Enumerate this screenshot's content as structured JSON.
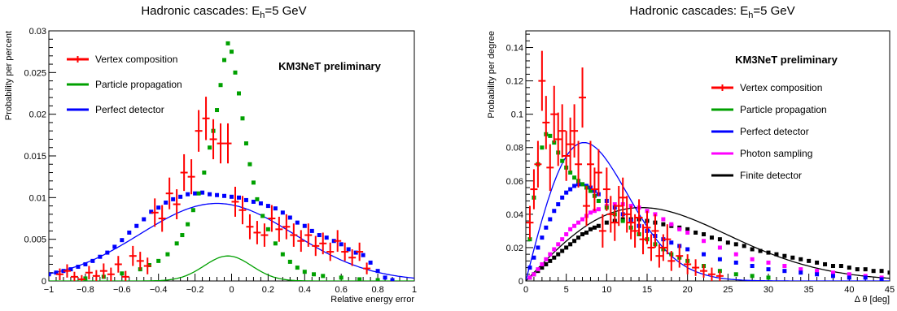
{
  "chart_data": [
    {
      "type": "scatter",
      "title_main": "Hadronic cascades: E",
      "title_sub": "h",
      "title_tail": "=5 GeV",
      "watermark": "KM3NeT preliminary",
      "xlabel": "Relative energy error",
      "ylabel": "Probability per percent",
      "xlim": [
        -1,
        1
      ],
      "ylim": [
        0,
        0.03
      ],
      "xticks": [
        -1,
        -0.8,
        -0.6,
        -0.4,
        -0.2,
        0,
        0.2,
        0.4,
        0.6,
        0.8,
        1
      ],
      "xtick_labels": [
        "−1",
        "−0.8",
        "−0.6",
        "−0.4",
        "−0.2",
        "0",
        "0.2",
        "0.4",
        "0.6",
        "0.8",
        "1"
      ],
      "yticks": [
        0,
        0.005,
        0.01,
        0.015,
        0.02,
        0.025,
        0.03
      ],
      "ytick_labels": [
        "0",
        "0.005",
        "0.01",
        "0.015",
        "0.02",
        "0.025",
        "0.03"
      ],
      "legend_position": "top-left",
      "series": [
        {
          "name": "Vertex composition",
          "color": "#ff0000",
          "x": [
            -0.94,
            -0.9,
            -0.86,
            -0.82,
            -0.78,
            -0.74,
            -0.7,
            -0.66,
            -0.62,
            -0.58,
            -0.54,
            -0.5,
            -0.46,
            -0.42,
            -0.38,
            -0.34,
            -0.3,
            -0.26,
            -0.22,
            -0.18,
            -0.14,
            -0.1,
            -0.06,
            -0.02,
            0.02,
            0.06,
            0.1,
            0.14,
            0.18,
            0.22,
            0.26,
            0.3,
            0.34,
            0.38,
            0.42,
            0.46,
            0.5,
            0.54,
            0.58,
            0.62,
            0.66,
            0.7,
            0.74
          ],
          "y": [
            0.0008,
            0.0012,
            0.0005,
            0.0002,
            0.001,
            0.0006,
            0.0012,
            0.0008,
            0.002,
            0.0005,
            0.003,
            0.0024,
            0.0018,
            0.0082,
            0.0075,
            0.0105,
            0.0092,
            0.013,
            0.0125,
            0.018,
            0.0195,
            0.017,
            0.0165,
            0.0165,
            0.0095,
            0.0085,
            0.0065,
            0.0058,
            0.0055,
            0.0075,
            0.0062,
            0.0065,
            0.0055,
            0.0048,
            0.0055,
            0.0042,
            0.0045,
            0.0035,
            0.0048,
            0.0035,
            0.0028,
            0.0035,
            0.0015
          ],
          "err": [
            0.0007,
            0.0008,
            0.0006,
            0.0005,
            0.0008,
            0.0007,
            0.0009,
            0.0008,
            0.001,
            0.0007,
            0.0012,
            0.0011,
            0.001,
            0.0017,
            0.0016,
            0.0019,
            0.0018,
            0.0022,
            0.0021,
            0.0025,
            0.0026,
            0.0024,
            0.0024,
            0.0024,
            0.0018,
            0.0017,
            0.0015,
            0.0014,
            0.0014,
            0.0016,
            0.0015,
            0.0015,
            0.0014,
            0.0013,
            0.0014,
            0.0012,
            0.0013,
            0.0011,
            0.0013,
            0.0011,
            0.001,
            0.0011,
            0.0007
          ]
        },
        {
          "name": "Particle propagation",
          "color": "#00a000",
          "x": [
            -0.8,
            -0.7,
            -0.6,
            -0.5,
            -0.45,
            -0.4,
            -0.35,
            -0.3,
            -0.27,
            -0.24,
            -0.21,
            -0.18,
            -0.15,
            -0.12,
            -0.1,
            -0.08,
            -0.06,
            -0.04,
            -0.02,
            0,
            0.02,
            0.04,
            0.06,
            0.08,
            0.1,
            0.12,
            0.14,
            0.17,
            0.2,
            0.24,
            0.28,
            0.32,
            0.36,
            0.4,
            0.45,
            0.5,
            0.6,
            0.7,
            0.8
          ],
          "y": [
            0.0003,
            0.0005,
            0.0009,
            0.0014,
            0.0019,
            0.0024,
            0.0032,
            0.0045,
            0.0055,
            0.0068,
            0.0085,
            0.0105,
            0.013,
            0.016,
            0.018,
            0.0205,
            0.0235,
            0.0265,
            0.0285,
            0.0275,
            0.025,
            0.0225,
            0.0195,
            0.0165,
            0.014,
            0.0118,
            0.0098,
            0.0078,
            0.0062,
            0.0045,
            0.0032,
            0.0023,
            0.0016,
            0.0011,
            0.0008,
            0.0006,
            0.0004,
            0.0002,
            0.0001
          ]
        },
        {
          "name": "Perfect detector",
          "color": "#0000ff",
          "x": [
            -1,
            -0.96,
            -0.92,
            -0.88,
            -0.84,
            -0.8,
            -0.76,
            -0.72,
            -0.68,
            -0.64,
            -0.6,
            -0.56,
            -0.52,
            -0.48,
            -0.44,
            -0.4,
            -0.36,
            -0.32,
            -0.28,
            -0.24,
            -0.2,
            -0.16,
            -0.12,
            -0.08,
            -0.04,
            0,
            0.04,
            0.08,
            0.12,
            0.16,
            0.2,
            0.24,
            0.28,
            0.32,
            0.36,
            0.4,
            0.44,
            0.48,
            0.52,
            0.56,
            0.6,
            0.64,
            0.68,
            0.72,
            0.76,
            0.8,
            0.84,
            0.88
          ],
          "y": [
            0.0008,
            0.001,
            0.0012,
            0.0014,
            0.0017,
            0.002,
            0.0024,
            0.0029,
            0.0034,
            0.0041,
            0.0049,
            0.0058,
            0.0066,
            0.0074,
            0.0083,
            0.0088,
            0.0094,
            0.0098,
            0.0101,
            0.0104,
            0.0105,
            0.0106,
            0.0104,
            0.0103,
            0.0102,
            0.0101,
            0.01,
            0.0097,
            0.0095,
            0.0093,
            0.009,
            0.0087,
            0.0082,
            0.0076,
            0.007,
            0.0066,
            0.006,
            0.0055,
            0.0052,
            0.0048,
            0.0044,
            0.0038,
            0.0034,
            0.0031,
            0.0022,
            0.0012,
            0.0004,
            0.0001
          ]
        }
      ],
      "fits": [
        {
          "series": "Perfect detector",
          "color": "#0000ff",
          "mean": -0.08,
          "sigma": 0.42,
          "amplitude": 0.0093
        },
        {
          "series": "Particle propagation",
          "color": "#00a000",
          "mean": -0.02,
          "sigma": 0.13,
          "amplitude": 0.003
        }
      ]
    },
    {
      "type": "scatter",
      "title_main": "Hadronic cascades: E",
      "title_sub": "h",
      "title_tail": "=5 GeV",
      "watermark": "KM3NeT preliminary",
      "xlabel": "Δ θ [deg]",
      "ylabel": "Probability per degree",
      "xlim": [
        0,
        45
      ],
      "ylim": [
        0,
        0.15
      ],
      "xticks": [
        0,
        5,
        10,
        15,
        20,
        25,
        30,
        35,
        40,
        45
      ],
      "xtick_labels": [
        "0",
        "5",
        "10",
        "15",
        "20",
        "25",
        "30",
        "35",
        "40",
        "45"
      ],
      "yticks": [
        0,
        0.02,
        0.04,
        0.06,
        0.08,
        0.1,
        0.12,
        0.14
      ],
      "ytick_labels": [
        "0",
        "0.02",
        "0.04",
        "0.06",
        "0.08",
        "0.1",
        "0.12",
        "0.14"
      ],
      "legend_position": "right",
      "series": [
        {
          "name": "Vertex composition",
          "color": "#ff0000",
          "x": [
            0.5,
            1,
            1.5,
            2,
            2.5,
            3,
            3.5,
            4,
            4.5,
            5,
            5.5,
            6,
            6.5,
            7,
            7.5,
            8,
            8.5,
            9,
            9.5,
            10,
            10.5,
            11,
            11.5,
            12,
            12.5,
            13,
            13.5,
            14,
            14.5,
            15,
            15.5,
            16,
            16.5,
            17,
            17.5,
            18,
            19,
            20,
            21,
            22,
            23,
            24
          ],
          "y": [
            0.035,
            0.055,
            0.07,
            0.12,
            0.095,
            0.068,
            0.1,
            0.085,
            0.09,
            0.075,
            0.082,
            0.09,
            0.07,
            0.11,
            0.045,
            0.07,
            0.055,
            0.065,
            0.03,
            0.055,
            0.04,
            0.035,
            0.045,
            0.05,
            0.04,
            0.035,
            0.03,
            0.038,
            0.025,
            0.032,
            0.02,
            0.03,
            0.015,
            0.02,
            0.025,
            0.012,
            0.015,
            0.01,
            0.008,
            0.006,
            0.004,
            0.003
          ],
          "err": [
            0.01,
            0.012,
            0.014,
            0.018,
            0.016,
            0.014,
            0.017,
            0.016,
            0.016,
            0.015,
            0.016,
            0.016,
            0.014,
            0.018,
            0.012,
            0.014,
            0.013,
            0.014,
            0.01,
            0.013,
            0.011,
            0.011,
            0.012,
            0.012,
            0.011,
            0.01,
            0.01,
            0.011,
            0.009,
            0.01,
            0.008,
            0.01,
            0.007,
            0.008,
            0.009,
            0.006,
            0.007,
            0.006,
            0.005,
            0.004,
            0.004,
            0.003
          ]
        },
        {
          "name": "Particle propagation",
          "color": "#00a000",
          "x": [
            0.5,
            1,
            1.5,
            2,
            2.5,
            3,
            3.5,
            4,
            4.5,
            5,
            5.5,
            6,
            6.5,
            7,
            7.5,
            8,
            8.5,
            9,
            10,
            11,
            12,
            13,
            14,
            15,
            16,
            17,
            18,
            19,
            20,
            22,
            24,
            26,
            28,
            30
          ],
          "y": [
            0.025,
            0.05,
            0.07,
            0.08,
            0.088,
            0.087,
            0.083,
            0.077,
            0.072,
            0.068,
            0.065,
            0.062,
            0.06,
            0.058,
            0.056,
            0.054,
            0.051,
            0.048,
            0.044,
            0.04,
            0.036,
            0.032,
            0.028,
            0.025,
            0.022,
            0.019,
            0.016,
            0.014,
            0.012,
            0.009,
            0.006,
            0.004,
            0.003,
            0.002
          ]
        },
        {
          "name": "Perfect detector",
          "color": "#0000ff",
          "x": [
            0.5,
            1,
            1.5,
            2,
            2.5,
            3,
            3.5,
            4,
            4.5,
            5,
            5.5,
            6,
            6.5,
            7,
            7.5,
            8,
            8.5,
            9,
            10,
            11,
            12,
            13,
            14,
            15,
            16,
            17,
            18,
            19,
            20,
            22,
            24,
            26,
            28,
            30,
            32,
            34,
            36,
            38,
            40,
            42,
            44
          ],
          "y": [
            0.008,
            0.014,
            0.02,
            0.026,
            0.032,
            0.037,
            0.042,
            0.046,
            0.05,
            0.053,
            0.055,
            0.057,
            0.058,
            0.058,
            0.057,
            0.056,
            0.054,
            0.052,
            0.048,
            0.044,
            0.04,
            0.036,
            0.033,
            0.03,
            0.027,
            0.025,
            0.023,
            0.021,
            0.019,
            0.016,
            0.013,
            0.011,
            0.009,
            0.007,
            0.006,
            0.005,
            0.004,
            0.003,
            0.002,
            0.002,
            0.001
          ]
        },
        {
          "name": "Photon sampling",
          "color": "#ff00ff",
          "x": [
            0.5,
            1,
            1.5,
            2,
            2.5,
            3,
            3.5,
            4,
            4.5,
            5,
            5.5,
            6,
            6.5,
            7,
            7.5,
            8,
            8.5,
            9,
            10,
            11,
            12,
            13,
            14,
            15,
            16,
            17,
            18,
            19,
            20,
            22,
            24,
            26,
            28,
            30,
            32,
            34,
            36,
            38,
            40,
            42,
            44
          ],
          "y": [
            0.002,
            0.004,
            0.007,
            0.01,
            0.013,
            0.016,
            0.019,
            0.022,
            0.025,
            0.028,
            0.031,
            0.033,
            0.035,
            0.037,
            0.039,
            0.041,
            0.042,
            0.043,
            0.045,
            0.046,
            0.046,
            0.045,
            0.044,
            0.042,
            0.04,
            0.037,
            0.034,
            0.031,
            0.029,
            0.024,
            0.02,
            0.016,
            0.013,
            0.011,
            0.009,
            0.007,
            0.006,
            0.005,
            0.004,
            0.003,
            0.002
          ]
        },
        {
          "name": "Finite detector",
          "color": "#000000",
          "x": [
            0.5,
            1,
            1.5,
            2,
            2.5,
            3,
            3.5,
            4,
            4.5,
            5,
            5.5,
            6,
            6.5,
            7,
            7.5,
            8,
            8.5,
            9,
            10,
            11,
            12,
            13,
            14,
            15,
            16,
            17,
            18,
            19,
            20,
            21,
            22,
            23,
            24,
            25,
            26,
            27,
            28,
            29,
            30,
            31,
            32,
            33,
            34,
            35,
            36,
            37,
            38,
            39,
            40,
            41,
            42,
            43,
            44,
            45
          ],
          "y": [
            0.002,
            0.004,
            0.006,
            0.008,
            0.01,
            0.012,
            0.014,
            0.016,
            0.018,
            0.02,
            0.022,
            0.024,
            0.026,
            0.028,
            0.029,
            0.031,
            0.032,
            0.033,
            0.035,
            0.036,
            0.037,
            0.037,
            0.037,
            0.036,
            0.035,
            0.034,
            0.033,
            0.032,
            0.031,
            0.029,
            0.028,
            0.026,
            0.025,
            0.023,
            0.022,
            0.021,
            0.019,
            0.018,
            0.017,
            0.016,
            0.015,
            0.014,
            0.013,
            0.012,
            0.011,
            0.01,
            0.009,
            0.009,
            0.008,
            0.007,
            0.007,
            0.006,
            0.006,
            0.005
          ]
        }
      ],
      "fits": [
        {
          "series": "Perfect detector",
          "color": "#0000ff",
          "shape": "rayleigh",
          "peak_x": 7.2,
          "peak_y": 0.083
        },
        {
          "series": "Finite detector",
          "color": "#000000",
          "shape": "rayleigh",
          "peak_x": 14.3,
          "peak_y": 0.044
        }
      ]
    }
  ]
}
